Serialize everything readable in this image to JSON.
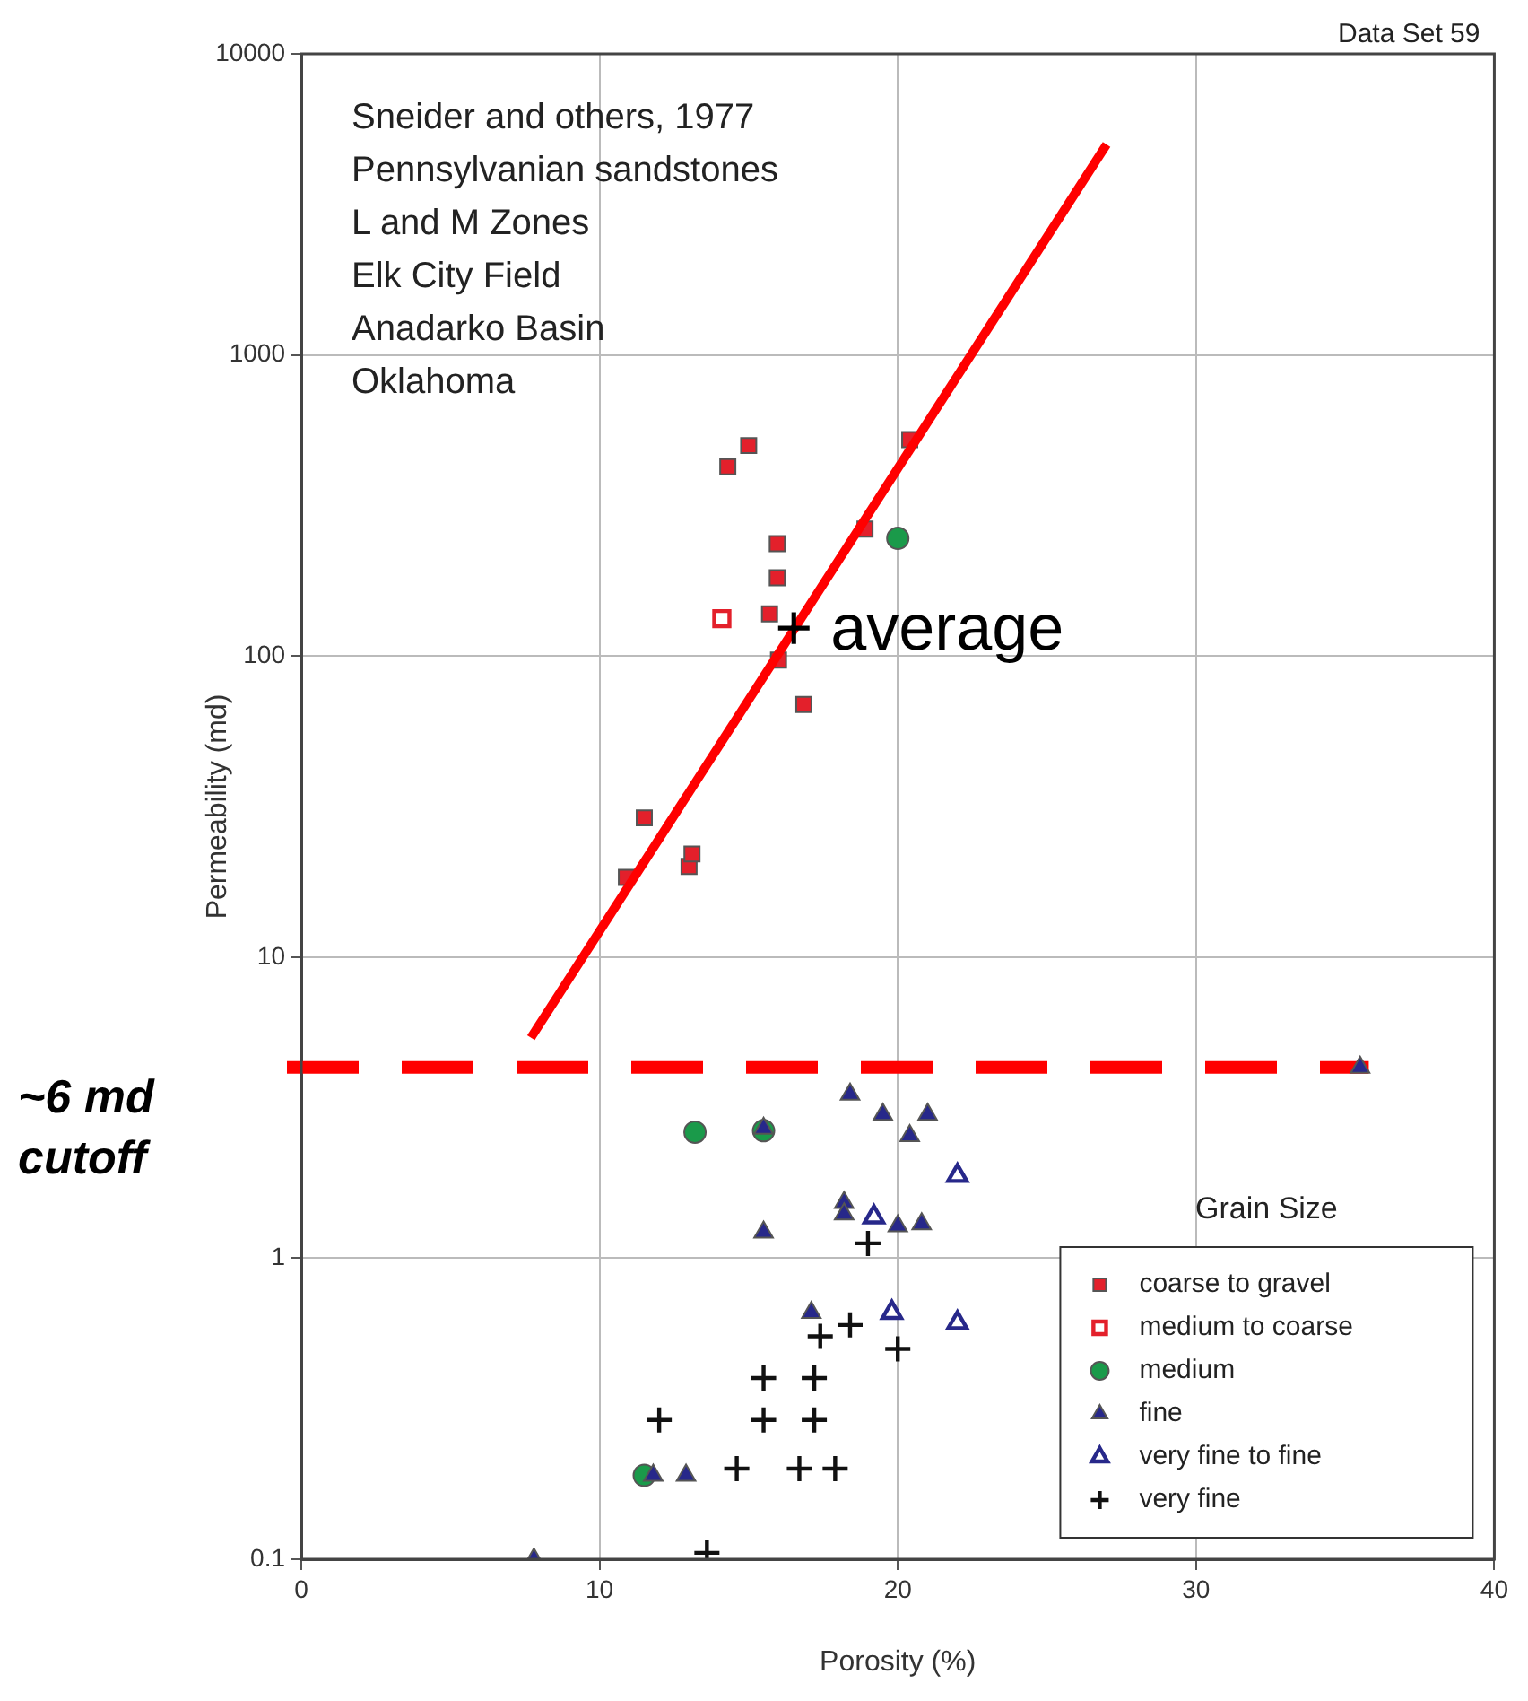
{
  "chart_data": {
    "type": "scatter",
    "xlabel": "Porosity (%)",
    "ylabel": "Permeability (md)",
    "xlim": [
      0,
      40
    ],
    "ylim": [
      0.1,
      10000
    ],
    "xticks": [
      0,
      10,
      20,
      30,
      40
    ],
    "yticks": [
      0.1,
      1,
      10,
      100,
      1000,
      10000
    ],
    "log": "y",
    "grid": true,
    "legend": "bottom right",
    "legend_title": "Grain Size",
    "annotations": [
      "Data Set 59",
      "Sneider and others, 1977",
      "Pennsylvanian sandstones",
      "L and M Zones",
      "Elk City Field",
      "Anadarko Basin",
      "Oklahoma",
      {
        "text": "+ average",
        "x": 16.6,
        "y": 120
      }
    ],
    "ref_lines": [
      {
        "axis": "y",
        "value": 4.3,
        "label": "~6 md cutoff",
        "color": "#ff0000",
        "line_style": "dashed"
      }
    ],
    "series": [
      {
        "name": "coarse to gravel",
        "color": "#e3202b",
        "marker": "square",
        "x": [
          10.9,
          11.5,
          13.0,
          13.1,
          14.3,
          15.0,
          15.96,
          15.96,
          15.7,
          16.0,
          16.85,
          18.9,
          20.4
        ],
        "values": [
          18.4,
          29,
          20,
          22,
          425,
          500,
          236,
          182,
          138,
          97,
          69,
          264,
          523
        ]
      },
      {
        "name": "medium to coarse",
        "color": "#e3202b",
        "marker": "square",
        "x": [
          14.1
        ],
        "values": [
          133
        ]
      },
      {
        "name": "medium",
        "color": "#1a9a4a",
        "marker": "circle",
        "x": [
          20.0,
          13.2,
          15.5,
          11.5
        ],
        "values": [
          246,
          2.62,
          2.65,
          0.19
        ]
      },
      {
        "name": "fine",
        "color": "#27288a",
        "marker": "triangle",
        "x": [
          7.8,
          18.4,
          19.5,
          21.0,
          20.4,
          15.5,
          35.5,
          15.5,
          18.2,
          18.2,
          20.0,
          20.8,
          17.1,
          11.8,
          12.9
        ],
        "values": [
          0.1,
          3.5,
          3.0,
          3.0,
          2.55,
          2.7,
          4.3,
          1.22,
          1.53,
          1.4,
          1.28,
          1.3,
          0.66,
          0.19,
          0.19
        ]
      },
      {
        "name": "very fine to fine",
        "color": "#27288a",
        "marker": "triangle",
        "x": [
          22.0,
          19.2,
          19.8,
          22.0
        ],
        "values": [
          1.88,
          1.37,
          0.66,
          0.61
        ]
      },
      {
        "name": "very fine",
        "color": "#111111",
        "marker": "cross",
        "x": [
          19.0,
          17.4,
          18.4,
          20.0,
          15.5,
          17.2,
          12.0,
          15.5,
          17.2,
          14.6,
          16.7,
          17.9,
          13.6
        ],
        "values": [
          1.12,
          0.55,
          0.6,
          0.5,
          0.4,
          0.4,
          0.29,
          0.29,
          0.29,
          0.2,
          0.2,
          0.2,
          0.105
        ]
      },
      {
        "type": "line",
        "color": "#ff0000",
        "marker": "none",
        "x": [
          7.7,
          27.0
        ],
        "values": [
          5.4,
          5000
        ]
      }
    ]
  }
}
